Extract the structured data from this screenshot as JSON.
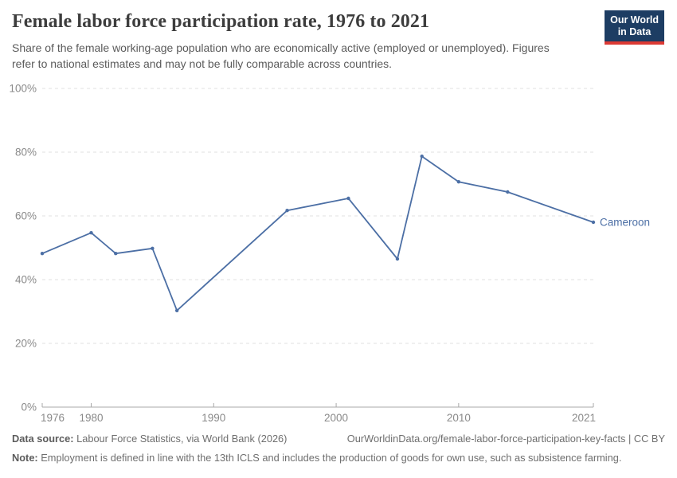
{
  "header": {
    "title": "Female labor force participation rate, 1976 to 2021",
    "subtitle": "Share of the female working-age population who are economically active (employed or unemployed). Figures refer to national estimates and may not be fully comparable across countries.",
    "logo": {
      "line1": "Our World",
      "line2": "in Data"
    }
  },
  "chart_data": {
    "type": "line",
    "title": "Female labor force participation rate, 1976 to 2021",
    "xlabel": "",
    "ylabel": "",
    "xlim": [
      1976,
      2021
    ],
    "ylim": [
      0,
      100
    ],
    "x_ticks": [
      1976,
      1980,
      1990,
      2000,
      2010,
      2021
    ],
    "y_ticks": [
      0,
      20,
      40,
      60,
      80,
      100
    ],
    "y_tick_suffix": "%",
    "grid": "horizontal-dashed",
    "legend_position": "end-of-line",
    "series": [
      {
        "name": "Cameroon",
        "color": "#4c6fa5",
        "x": [
          1976,
          1980,
          1982,
          1985,
          1987,
          1996,
          2001,
          2005,
          2007,
          2010,
          2014,
          2021
        ],
        "values": [
          48.2,
          54.7,
          48.2,
          49.8,
          30.3,
          61.7,
          65.5,
          46.5,
          78.7,
          70.7,
          67.5,
          58.0
        ]
      }
    ]
  },
  "footer": {
    "source_label": "Data source:",
    "source_text": " Labour Force Statistics, via World Bank (2026)",
    "url": "OurWorldinData.org/female-labor-force-participation-key-facts | CC BY",
    "note_label": "Note:",
    "note_text": " Employment is defined in line with the 13th ICLS and includes the production of goods for own use, such as subsistence farming."
  },
  "colors": {
    "line": "#4c6fa5",
    "logo_bg": "#1d3d63",
    "logo_stripe": "#dc3a34",
    "grid": "#e2e2e2",
    "axis": "#a8a8a8",
    "tick_label": "#8a8a8a",
    "title_text": "#3d3d3d",
    "subtitle_text": "#5b5b5b"
  }
}
